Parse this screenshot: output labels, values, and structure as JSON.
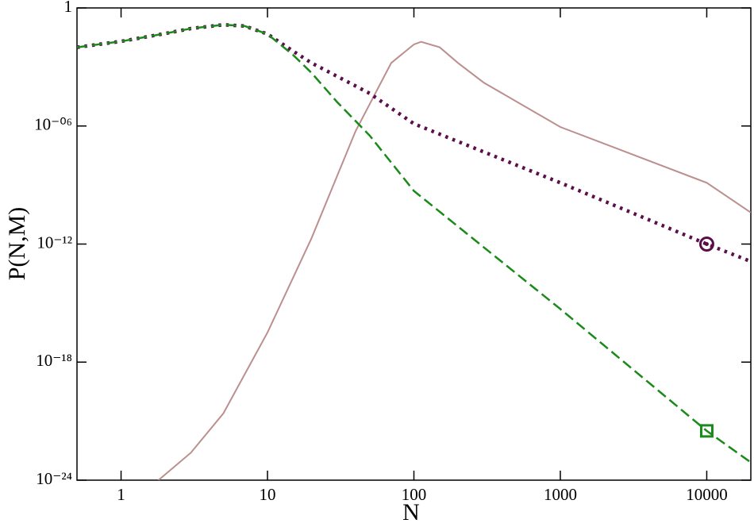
{
  "chart_data": {
    "type": "line",
    "xlabel": "N",
    "ylabel": "P(N,M)",
    "xscale": "log",
    "yscale": "log",
    "xlim": [
      0.5,
      20000
    ],
    "ylim": [
      1e-24,
      1
    ],
    "xticks": [
      1,
      10,
      100,
      1000,
      10000
    ],
    "yticks": [
      1,
      {
        "value": 1e-06,
        "label": "10⁻⁰⁶"
      },
      {
        "value": 1e-12,
        "label": "10⁻¹²"
      },
      {
        "value": 1e-18,
        "label": "10⁻¹⁸"
      },
      {
        "value": 1e-24,
        "label": "10⁻²⁴"
      }
    ],
    "series": [
      {
        "color": "#bc8f8f",
        "style": "solid",
        "x": [
          1.8,
          3,
          5,
          10,
          20,
          40,
          70,
          100,
          112,
          150,
          200,
          300,
          1000,
          10000,
          20000
        ],
        "values": [
          1e-24,
          2.5e-23,
          2.5e-21,
          3.2e-17,
          2e-12,
          5.6e-07,
          0.0016,
          0.014,
          0.019,
          0.01,
          0.0016,
          0.00016,
          8.9e-07,
          1.3e-09,
          4e-11
        ]
      },
      {
        "color": "#5b0f4a",
        "style": "dotted",
        "x": [
          0.5,
          1,
          2,
          3,
          5,
          7,
          10,
          15,
          20,
          50,
          100,
          1000,
          10000,
          20000
        ],
        "values": [
          0.01,
          0.02,
          0.05,
          0.09,
          0.14,
          0.12,
          0.047,
          0.0063,
          0.0016,
          4.5e-05,
          1.3e-06,
          1.3e-09,
          1e-12,
          1.3e-13
        ],
        "marker": {
          "shape": "circle",
          "x": 10000,
          "y": 1e-12
        }
      },
      {
        "color": "#1a8a1a",
        "style": "dashed",
        "x": [
          0.5,
          1,
          2,
          3,
          5,
          7,
          10,
          15,
          20,
          30,
          50,
          100,
          1000,
          10000,
          20000
        ],
        "values": [
          0.01,
          0.02,
          0.05,
          0.09,
          0.14,
          0.12,
          0.047,
          0.004,
          0.0005,
          1.6e-05,
          3.2e-07,
          5e-10,
          5e-16,
          3.2e-22,
          8e-24
        ],
        "marker": {
          "shape": "square",
          "x": 10000,
          "y": 3.2e-22
        }
      }
    ]
  }
}
